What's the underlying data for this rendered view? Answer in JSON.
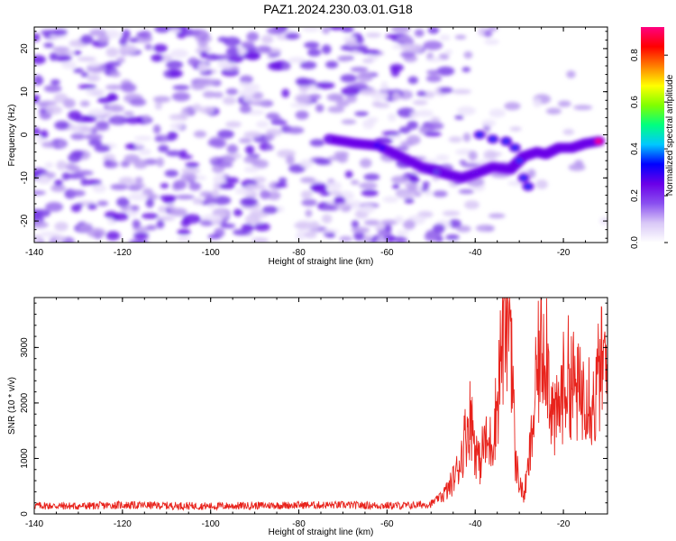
{
  "title": "PAZ1.2024.230.03.01.G18",
  "chart_data": [
    {
      "type": "heatmap",
      "title": "PAZ1.2024.230.03.01.G18",
      "xlabel": "Height of straight line (km)",
      "ylabel": "Frequency (Hz)",
      "xlim": [
        -140,
        -10
      ],
      "ylim": [
        -25,
        25
      ],
      "x_ticks": [
        -140,
        -120,
        -100,
        -80,
        -60,
        -40,
        -20
      ],
      "y_ticks": [
        -20,
        -10,
        0,
        10,
        20
      ],
      "colorbar": {
        "label": "Normalized spectral amplitude",
        "range": [
          0,
          0.92
        ],
        "ticks": [
          0.0,
          0.2,
          0.4,
          0.6,
          0.8
        ],
        "colors": [
          "#ffffff",
          "#d9c8f7",
          "#8a4ff0",
          "#6a00e8",
          "#0000ff",
          "#00c8ff",
          "#00ff80",
          "#80ff00",
          "#ffff00",
          "#ff8000",
          "#ff0000",
          "#ff0080"
        ]
      },
      "ridge": {
        "description_points": [
          {
            "x": -73,
            "y": -1,
            "amp": 0.2
          },
          {
            "x": -67,
            "y": -2,
            "amp": 0.25
          },
          {
            "x": -62,
            "y": -2.5,
            "amp": 0.3
          },
          {
            "x": -52,
            "y": -7.5,
            "amp": 0.25
          },
          {
            "x": -47,
            "y": -9,
            "amp": 0.45
          },
          {
            "x": -43,
            "y": -10,
            "amp": 0.55
          },
          {
            "x": -40,
            "y": -9,
            "amp": 0.45
          },
          {
            "x": -36,
            "y": -7.5,
            "amp": 0.3
          },
          {
            "x": -32,
            "y": -8,
            "amp": 0.3
          },
          {
            "x": -29,
            "y": -5,
            "amp": 0.3
          },
          {
            "x": -26,
            "y": -4,
            "amp": 0.4
          },
          {
            "x": -24,
            "y": -4.5,
            "amp": 0.45
          },
          {
            "x": -21,
            "y": -3,
            "amp": 0.6
          },
          {
            "x": -18,
            "y": -3,
            "amp": 0.8
          },
          {
            "x": -15,
            "y": -2,
            "amp": 0.7
          },
          {
            "x": -12,
            "y": -1.5,
            "amp": 0.92
          }
        ]
      },
      "grid": false
    },
    {
      "type": "line",
      "xlabel": "Height of straight line (km)",
      "ylabel": "SNR (10 * v/v)",
      "xlim": [
        -140,
        -10
      ],
      "ylim": [
        0,
        3900
      ],
      "x_ticks": [
        -140,
        -120,
        -100,
        -80,
        -60,
        -40,
        -20
      ],
      "y_ticks": [
        0,
        1000,
        2000,
        3000
      ],
      "series": [
        {
          "color": "#e8231c",
          "x": [
            -140,
            -130,
            -120,
            -110,
            -100,
            -90,
            -80,
            -70,
            -60,
            -55,
            -50,
            -48,
            -46,
            -44,
            -43,
            -42,
            -41,
            -40,
            -39,
            -38,
            -37,
            -36,
            -35,
            -34,
            -33,
            -32.5,
            -32,
            -31.5,
            -31,
            -30,
            -29,
            -28,
            -27,
            -26,
            -25,
            -24,
            -23,
            -22,
            -21,
            -20,
            -19,
            -18,
            -17,
            -16,
            -15,
            -14,
            -13,
            -12,
            -11,
            -10
          ],
          "values": [
            150,
            140,
            160,
            150,
            140,
            150,
            160,
            160,
            150,
            150,
            180,
            300,
            450,
            800,
            1100,
            1500,
            1800,
            1200,
            900,
            1300,
            1200,
            1400,
            2000,
            3100,
            3600,
            3800,
            3700,
            2600,
            1000,
            600,
            300,
            800,
            1500,
            2500,
            3000,
            3300,
            2200,
            1600,
            1900,
            2300,
            2500,
            2400,
            2200,
            2100,
            2400,
            2200,
            1900,
            2500,
            2700,
            2500
          ]
        }
      ],
      "grid": false
    }
  ]
}
